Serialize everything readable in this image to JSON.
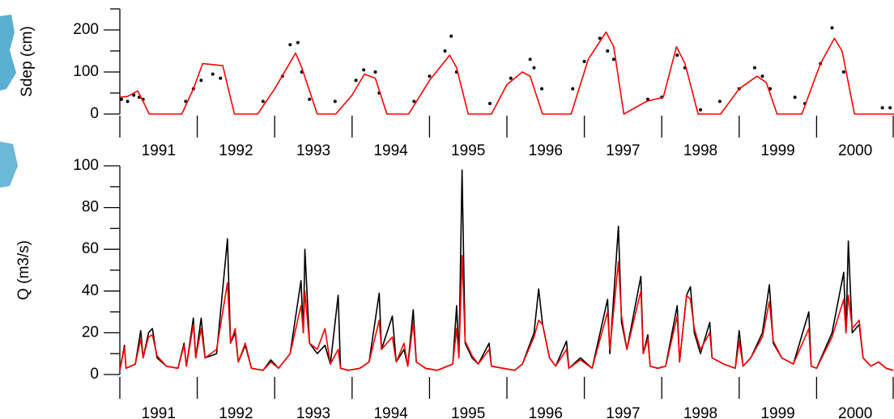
{
  "chart_data": [
    {
      "type": "line",
      "ylabel": "Sdep (cm)",
      "xlim": [
        1991,
        2001
      ],
      "x_major_ticks": [
        1991,
        1992,
        1993,
        1994,
        1995,
        1996,
        1997,
        1998,
        1999,
        2000,
        2001
      ],
      "xticks": [
        {
          "value": 1991.5,
          "label": "1991"
        },
        {
          "value": 1992.5,
          "label": "1992"
        },
        {
          "value": 1993.5,
          "label": "1993"
        },
        {
          "value": 1994.5,
          "label": "1994"
        },
        {
          "value": 1995.5,
          "label": "1995"
        },
        {
          "value": 1996.5,
          "label": "1996"
        },
        {
          "value": 1997.5,
          "label": "1997"
        },
        {
          "value": 1998.5,
          "label": "1998"
        },
        {
          "value": 1999.5,
          "label": "1999"
        },
        {
          "value": 2000.5,
          "label": "2000"
        }
      ],
      "ylim": [
        0,
        250
      ],
      "yticks": [
        0,
        100,
        200
      ],
      "yminor_ticks": [
        50,
        150,
        250
      ],
      "series": [
        {
          "color": "#000000",
          "style": "markers",
          "x": [
            1991.02,
            1991.1,
            1991.18,
            1991.25,
            1991.3,
            1991.85,
            1991.95,
            1992.05,
            1992.2,
            1992.3,
            1992.85,
            1993.1,
            1993.2,
            1993.3,
            1993.35,
            1993.45,
            1993.78,
            1994.05,
            1994.15,
            1994.3,
            1994.35,
            1994.8,
            1995.0,
            1995.2,
            1995.28,
            1995.35,
            1995.78,
            1996.05,
            1996.3,
            1996.35,
            1996.45,
            1996.85,
            1997.0,
            1997.2,
            1997.3,
            1997.38,
            1997.82,
            1998.0,
            1998.2,
            1998.3,
            1998.5,
            1998.75,
            1999.0,
            1999.2,
            1999.3,
            1999.4,
            1999.72,
            1999.85,
            2000.05,
            2000.2,
            2000.35,
            2000.85,
            2000.95
          ],
          "values": [
            35,
            30,
            45,
            40,
            35,
            30,
            60,
            80,
            95,
            85,
            30,
            90,
            165,
            170,
            100,
            35,
            30,
            80,
            105,
            100,
            50,
            30,
            90,
            150,
            185,
            100,
            25,
            85,
            130,
            110,
            60,
            60,
            125,
            180,
            150,
            130,
            35,
            40,
            140,
            110,
            10,
            30,
            60,
            110,
            90,
            60,
            40,
            25,
            120,
            205,
            100,
            15,
            15
          ]
        },
        {
          "color": "#ff0000",
          "style": "line",
          "x": [
            1991.0,
            1991.1,
            1991.23,
            1991.3,
            1991.38,
            1991.8,
            1991.95,
            1992.07,
            1992.33,
            1992.48,
            1992.78,
            1993.0,
            1993.27,
            1993.35,
            1993.55,
            1993.79,
            1994.0,
            1994.16,
            1994.3,
            1994.45,
            1994.73,
            1995.0,
            1995.26,
            1995.35,
            1995.5,
            1995.8,
            1996.0,
            1996.2,
            1996.3,
            1996.46,
            1996.83,
            1997.05,
            1997.28,
            1997.38,
            1997.51,
            1997.8,
            1998.02,
            1998.19,
            1998.3,
            1998.47,
            1998.76,
            1999.0,
            1999.23,
            1999.35,
            1999.49,
            1999.81,
            2000.05,
            2000.23,
            2000.33,
            2000.49,
            2001.0
          ],
          "values": [
            40,
            42,
            55,
            30,
            0,
            0,
            60,
            120,
            115,
            0,
            0,
            60,
            145,
            110,
            0,
            0,
            45,
            95,
            85,
            0,
            0,
            80,
            140,
            110,
            0,
            0,
            70,
            100,
            90,
            0,
            0,
            130,
            195,
            160,
            0,
            30,
            40,
            160,
            120,
            0,
            0,
            60,
            90,
            75,
            0,
            0,
            120,
            180,
            150,
            0,
            0
          ]
        }
      ]
    },
    {
      "type": "line",
      "ylabel": "Q (m3/s)",
      "xlim": [
        1991,
        2001
      ],
      "x_major_ticks": [
        1991,
        1992,
        1993,
        1994,
        1995,
        1996,
        1997,
        1998,
        1999,
        2000,
        2001
      ],
      "xticks": [
        {
          "value": 1991.5,
          "label": "1991"
        },
        {
          "value": 1992.5,
          "label": "1992"
        },
        {
          "value": 1993.5,
          "label": "1993"
        },
        {
          "value": 1994.5,
          "label": "1994"
        },
        {
          "value": 1995.5,
          "label": "1995"
        },
        {
          "value": 1996.5,
          "label": "1996"
        },
        {
          "value": 1997.5,
          "label": "1997"
        },
        {
          "value": 1998.5,
          "label": "1998"
        },
        {
          "value": 1999.5,
          "label": "1999"
        },
        {
          "value": 2000.5,
          "label": "2000"
        }
      ],
      "ylim": [
        0,
        100
      ],
      "yticks": [
        0,
        20,
        40,
        60,
        80,
        100
      ],
      "yminor_ticks": [
        10,
        30,
        50,
        70,
        90
      ],
      "x": [
        1991.0,
        1991.06,
        1991.08,
        1991.2,
        1991.27,
        1991.3,
        1991.37,
        1991.42,
        1991.48,
        1991.6,
        1991.75,
        1991.83,
        1991.86,
        1991.95,
        1991.98,
        1992.05,
        1992.1,
        1992.25,
        1992.39,
        1992.43,
        1992.49,
        1992.53,
        1992.62,
        1992.7,
        1992.85,
        1992.95,
        1993.05,
        1993.2,
        1993.34,
        1993.37,
        1993.39,
        1993.45,
        1993.55,
        1993.65,
        1993.72,
        1993.82,
        1993.85,
        1993.95,
        1994.1,
        1994.22,
        1994.35,
        1994.38,
        1994.52,
        1994.57,
        1994.67,
        1994.72,
        1994.79,
        1994.83,
        1994.95,
        1995.1,
        1995.3,
        1995.35,
        1995.38,
        1995.42,
        1995.46,
        1995.55,
        1995.63,
        1995.77,
        1995.8,
        1995.95,
        1996.1,
        1996.2,
        1996.35,
        1996.41,
        1996.46,
        1996.55,
        1996.63,
        1996.77,
        1996.8,
        1996.95,
        1997.1,
        1997.3,
        1997.33,
        1997.44,
        1997.48,
        1997.55,
        1997.73,
        1997.76,
        1997.82,
        1997.85,
        1997.95,
        1998.05,
        1998.2,
        1998.23,
        1998.32,
        1998.37,
        1998.42,
        1998.5,
        1998.62,
        1998.65,
        1998.8,
        1998.95,
        1999.0,
        1999.05,
        1999.15,
        1999.3,
        1999.39,
        1999.44,
        1999.55,
        1999.7,
        1999.9,
        1999.93,
        2000.0,
        2000.2,
        2000.35,
        2000.38,
        2000.41,
        2000.46,
        2000.55,
        2000.6,
        2000.7,
        2000.8,
        2000.9,
        2000.99
      ],
      "series": [
        {
          "color": "#000000",
          "style": "line",
          "values": [
            2,
            14,
            3,
            5,
            21,
            8,
            20,
            22,
            8,
            4,
            3,
            15,
            4,
            27,
            8,
            27,
            8,
            10,
            65,
            15,
            20,
            6,
            14,
            3,
            2,
            7,
            3,
            10,
            45,
            20,
            60,
            15,
            10,
            14,
            5,
            38,
            3,
            2,
            3,
            6,
            39,
            12,
            28,
            6,
            12,
            4,
            31,
            6,
            3,
            2,
            5,
            33,
            8,
            98,
            15,
            8,
            5,
            15,
            4,
            3,
            2,
            5,
            20,
            41,
            24,
            8,
            4,
            16,
            3,
            8,
            3,
            36,
            10,
            71,
            25,
            12,
            47,
            10,
            19,
            4,
            3,
            4,
            33,
            6,
            38,
            42,
            20,
            10,
            25,
            8,
            5,
            3,
            21,
            4,
            8,
            20,
            43,
            15,
            8,
            5,
            30,
            4,
            3,
            20,
            49,
            20,
            64,
            20,
            24,
            8,
            4,
            6,
            3,
            2
          ]
        },
        {
          "color": "#ff0000",
          "style": "line",
          "values": [
            2,
            13,
            3,
            5,
            17,
            8,
            18,
            19,
            9,
            4,
            3,
            14,
            4,
            24,
            8,
            22,
            8,
            12,
            44,
            15,
            22,
            6,
            15,
            3,
            2,
            6,
            3,
            10,
            33,
            20,
            40,
            15,
            12,
            22,
            5,
            12,
            3,
            2,
            3,
            6,
            26,
            12,
            18,
            6,
            15,
            4,
            25,
            6,
            3,
            2,
            5,
            22,
            8,
            57,
            16,
            9,
            5,
            12,
            4,
            3,
            2,
            5,
            18,
            26,
            24,
            8,
            4,
            12,
            3,
            7,
            3,
            30,
            12,
            54,
            28,
            12,
            40,
            10,
            17,
            4,
            3,
            4,
            28,
            6,
            38,
            36,
            22,
            12,
            20,
            8,
            5,
            3,
            16,
            4,
            8,
            18,
            35,
            16,
            8,
            5,
            22,
            4,
            3,
            18,
            36,
            20,
            38,
            22,
            26,
            8,
            4,
            6,
            3,
            2
          ]
        }
      ]
    }
  ]
}
